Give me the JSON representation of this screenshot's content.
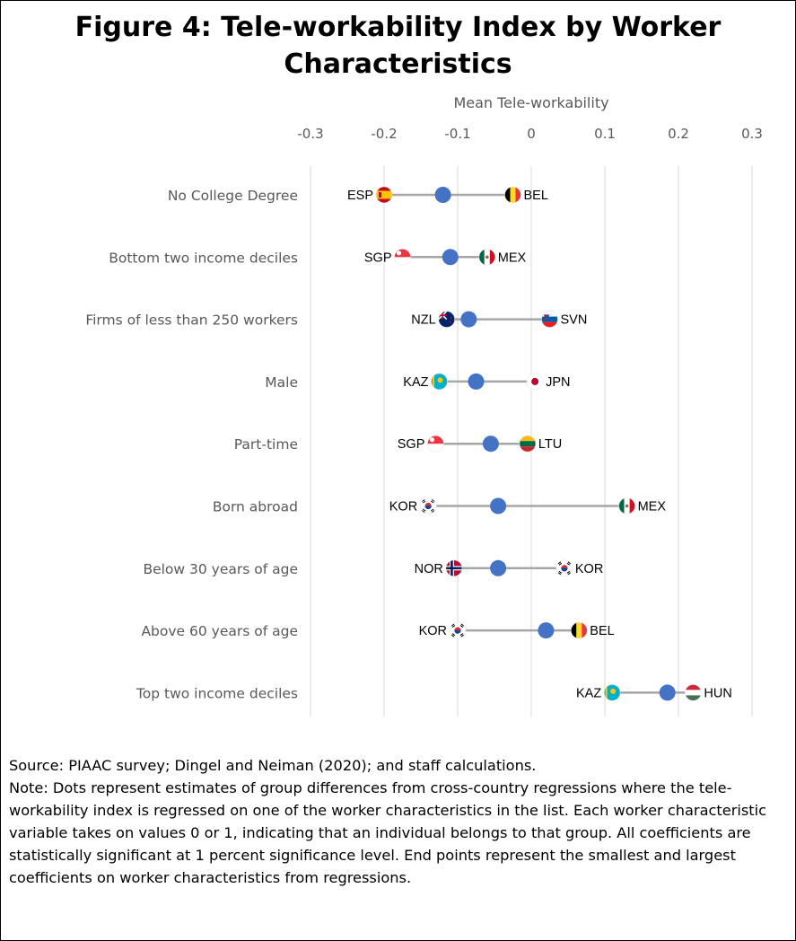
{
  "figure": {
    "title": "Figure 4: Tele-workability Index by Worker Characteristics"
  },
  "notes": {
    "source": "Source: PIAAC survey; Dingel and Neiman (2020); and staff calculations.",
    "note": "Note: Dots represent estimates of group differences from cross-country regressions where the tele-workability index is regressed on one of the worker characteristics in the list. Each worker characteristic variable takes on values 0 or 1, indicating that an individual belongs to that group. All coefficients are statistically significant at 1 percent significance level. End points represent the smallest and largest coefficients on worker characteristics from regressions."
  },
  "chart_data": {
    "type": "scatter",
    "subtype": "dumbbell",
    "title": "Figure 4: Tele-workability Index by Worker Characteristics",
    "xlabel": "Mean Tele-workability",
    "xlim": [
      -0.3,
      0.3
    ],
    "xticks": [
      "-0.3",
      "-0.2",
      "-0.1",
      "0",
      "0.1",
      "0.2",
      "0.3"
    ],
    "xtick_values": [
      -0.3,
      -0.2,
      -0.1,
      0,
      0.1,
      0.2,
      0.3
    ],
    "x_axis_position": "top",
    "grid": "vertical",
    "colors": {
      "mean_dot": "#4472c4",
      "range_line": "#a6a6a6",
      "gridline": "#d9d9d9"
    },
    "rows": [
      {
        "category": "No College Degree",
        "min": {
          "country": "ESP",
          "value": -0.2
        },
        "mean": -0.12,
        "max": {
          "country": "BEL",
          "value": -0.025
        }
      },
      {
        "category": "Bottom two income deciles",
        "min": {
          "country": "SGP",
          "value": -0.175
        },
        "mean": -0.11,
        "max": {
          "country": "MEX",
          "value": -0.06
        }
      },
      {
        "category": "Firms of less than 250 workers",
        "min": {
          "country": "NZL",
          "value": -0.115
        },
        "mean": -0.085,
        "max": {
          "country": "SVN",
          "value": 0.025
        }
      },
      {
        "category": "Male",
        "min": {
          "country": "KAZ",
          "value": -0.125
        },
        "mean": -0.075,
        "max": {
          "country": "JPN",
          "value": 0.005
        }
      },
      {
        "category": "Part-time",
        "min": {
          "country": "SGP",
          "value": -0.13
        },
        "mean": -0.055,
        "max": {
          "country": "LTU",
          "value": -0.005
        }
      },
      {
        "category": "Born abroad",
        "min": {
          "country": "KOR",
          "value": -0.14
        },
        "mean": -0.045,
        "max": {
          "country": "MEX",
          "value": 0.13
        }
      },
      {
        "category": "Below 30 years of age",
        "min": {
          "country": "NOR",
          "value": -0.105
        },
        "mean": -0.045,
        "max": {
          "country": "KOR",
          "value": 0.045
        }
      },
      {
        "category": "Above 60 years of age",
        "min": {
          "country": "KOR",
          "value": -0.1
        },
        "mean": 0.02,
        "max": {
          "country": "BEL",
          "value": 0.065
        }
      },
      {
        "category": "Top two income deciles",
        "min": {
          "country": "KAZ",
          "value": 0.11
        },
        "mean": 0.185,
        "max": {
          "country": "HUN",
          "value": 0.22
        }
      }
    ]
  },
  "flags": {
    "ESP": "flag-spain-icon",
    "BEL": "flag-belgium-icon",
    "SGP": "flag-singapore-icon",
    "MEX": "flag-mexico-icon",
    "NZL": "flag-new-zealand-icon",
    "SVN": "flag-slovenia-icon",
    "KAZ": "flag-kazakhstan-icon",
    "JPN": "flag-japan-icon",
    "LTU": "flag-lithuania-icon",
    "KOR": "flag-korea-icon",
    "NOR": "flag-norway-icon",
    "HUN": "flag-hungary-icon"
  }
}
